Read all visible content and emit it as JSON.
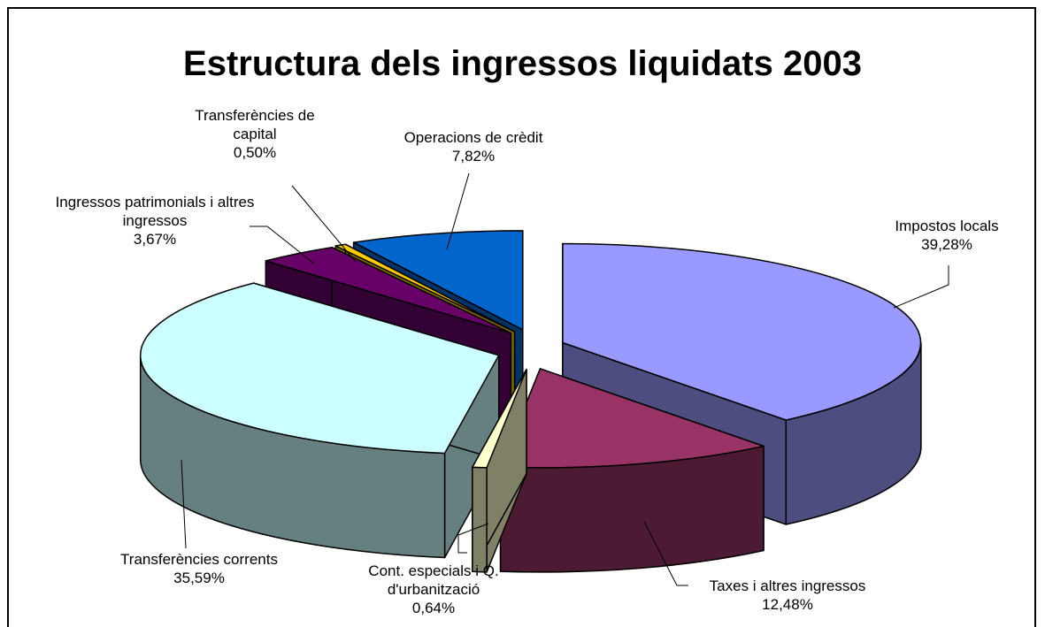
{
  "chart_data": {
    "type": "pie3d",
    "title": "Estructura dels ingressos liquidats 2003",
    "categories": [
      "Impostos locals",
      "Taxes i altres ingressos",
      "Cont. especials i Q. d'urbanització",
      "Transferències corrents",
      "Ingressos patrimonials i altres ingressos",
      "Transferències de capital",
      "Operacions de crèdit"
    ],
    "values": [
      39.28,
      12.48,
      0.64,
      35.59,
      3.67,
      0.5,
      7.82
    ],
    "value_labels": [
      "39,28%",
      "12,48%",
      "0,64%",
      "35,59%",
      "3,67%",
      "0,50%",
      "7,82%"
    ],
    "colors": [
      "#9999ff",
      "#993366",
      "#ffffcc",
      "#ccffff",
      "#660066",
      "#ffcc00",
      "#0066cc"
    ]
  }
}
